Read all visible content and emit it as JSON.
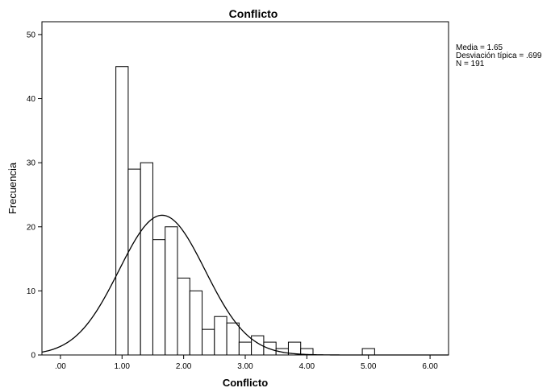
{
  "chart_data": {
    "type": "bar",
    "title": "Conflicto",
    "xlabel": "Conflicto",
    "ylabel": "Frecuencia",
    "xlim": [
      -0.3,
      6.3
    ],
    "ylim": [
      0,
      52
    ],
    "x_ticks": [
      0,
      1,
      2,
      3,
      4,
      5,
      6
    ],
    "x_tick_labels": [
      ".00",
      "1.00",
      "2.00",
      "3.00",
      "4.00",
      "5.00",
      "6.00"
    ],
    "y_ticks": [
      0,
      10,
      20,
      30,
      40,
      50
    ],
    "y_tick_labels": [
      "0",
      "10",
      "20",
      "30",
      "40",
      "50"
    ],
    "bin_width": 0.2,
    "bins": [
      {
        "start": 0.9,
        "count": 45
      },
      {
        "start": 1.1,
        "count": 29
      },
      {
        "start": 1.3,
        "count": 30
      },
      {
        "start": 1.5,
        "count": 18
      },
      {
        "start": 1.7,
        "count": 20
      },
      {
        "start": 1.9,
        "count": 12
      },
      {
        "start": 2.1,
        "count": 10
      },
      {
        "start": 2.3,
        "count": 4
      },
      {
        "start": 2.5,
        "count": 6
      },
      {
        "start": 2.7,
        "count": 5
      },
      {
        "start": 2.9,
        "count": 2
      },
      {
        "start": 3.1,
        "count": 3
      },
      {
        "start": 3.3,
        "count": 2
      },
      {
        "start": 3.5,
        "count": 1
      },
      {
        "start": 3.7,
        "count": 2
      },
      {
        "start": 3.9,
        "count": 1
      },
      {
        "start": 4.9,
        "count": 1
      }
    ],
    "normal_curve": {
      "mean": 1.65,
      "sd": 0.699,
      "n": 191
    },
    "stats_lines": [
      "Media = 1.65",
      "Desviación típica = .699",
      "N = 191"
    ],
    "grid": false,
    "colors": {
      "bar_fill": "#ffffff",
      "bar_stroke": "#000000",
      "curve": "#000000",
      "background": "#ffffff"
    }
  }
}
